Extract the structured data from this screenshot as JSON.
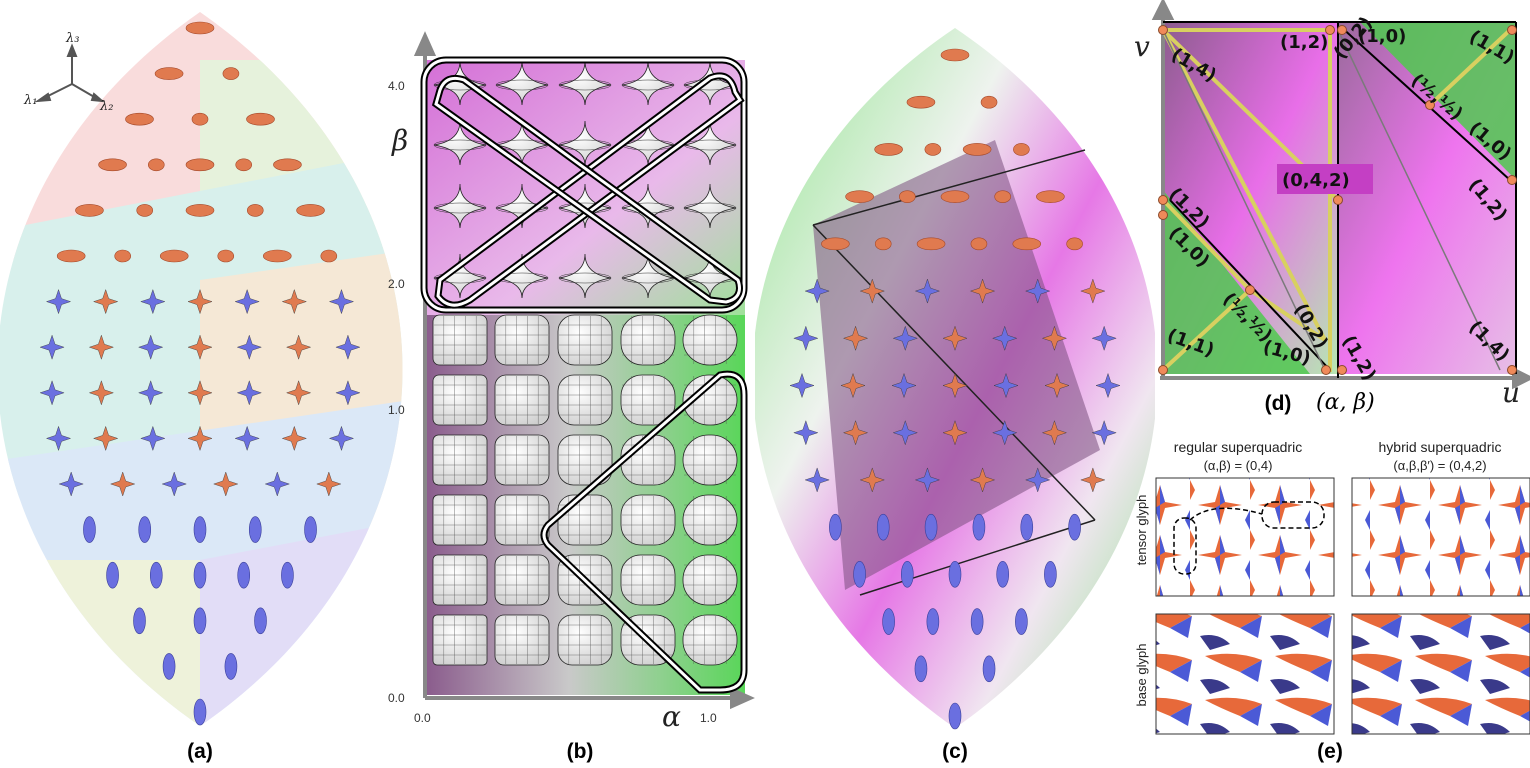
{
  "panels": {
    "a": {
      "caption": "(a)",
      "lambda1": "λ₁",
      "lambda2": "λ₂",
      "lambda3": "λ₃"
    },
    "b": {
      "caption": "(b)",
      "x_symbol": "α",
      "y_symbol": "β",
      "y_ticks": [
        "4.0",
        "2.0",
        "1.0",
        "0.0"
      ],
      "x_ticks": [
        "0.0",
        "1.0"
      ]
    },
    "c": {
      "caption": "(c)"
    },
    "d": {
      "caption": "(d)",
      "caption_math": "(α, β)",
      "u_label": "u",
      "v_label": "v",
      "center_label": "(0,4,2)",
      "corner_labels": [
        "(1,4)",
        "(1,2)",
        "(0,2)",
        "(1,0)",
        "(1,1)",
        "(½,½)",
        "(1,0)",
        "(1,2)",
        "(1,2)",
        "(1,0)",
        "(½,½)",
        "(0,2)",
        "(1,1)",
        "(1,0)",
        "(1,2)",
        "(1,4)"
      ]
    },
    "e": {
      "caption": "(e)",
      "col1_title": "regular superquadric",
      "col1_sub": "(α,β) = (0,4)",
      "col2_title": "hybrid superquadric",
      "col2_sub": "(α,β,β′) = (0,4,2)",
      "row1_label": "tensor glyph",
      "row2_label": "base glyph"
    }
  },
  "colors": {
    "orange": "#e07a4f",
    "blue": "#6a6fe0",
    "magenta": "#e06ee0",
    "green": "#6ee06e"
  }
}
